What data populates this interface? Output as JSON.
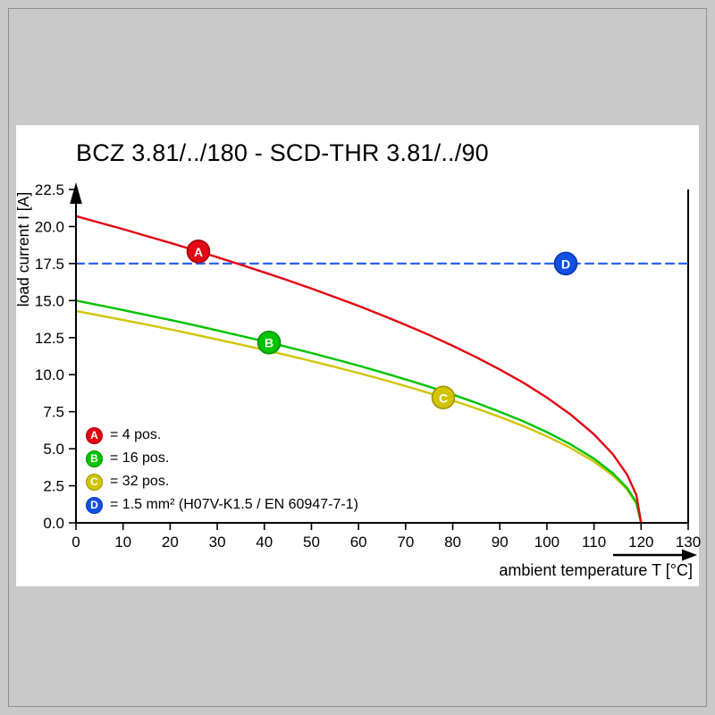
{
  "chart_data": {
    "type": "line",
    "title": "BCZ 3.81/../180 - SCD-THR 3.81/../90",
    "xlabel": "ambient temperature T [°C]",
    "ylabel": "load current I [A]",
    "xlim": [
      0,
      130
    ],
    "ylim": [
      0,
      22.5
    ],
    "xticks": [
      "0",
      "10",
      "20",
      "30",
      "40",
      "50",
      "60",
      "70",
      "80",
      "90",
      "100",
      "110",
      "120",
      "130"
    ],
    "yticks": [
      "0.0",
      "2.5",
      "5.0",
      "7.5",
      "10.0",
      "12.5",
      "15.0",
      "17.5",
      "20.0",
      "22.5"
    ],
    "grid": false,
    "legend_position": "inside-lower-left",
    "axis_color": "#000000",
    "series": [
      {
        "name": "A",
        "legend_label": "= 4 pos.",
        "color": "#e30613",
        "ring": "#a50010",
        "style": "solid",
        "marker_at": [
          26,
          18.32
        ],
        "points": [
          [
            0,
            20.7
          ],
          [
            5,
            20.26
          ],
          [
            10,
            19.82
          ],
          [
            15,
            19.36
          ],
          [
            20,
            18.9
          ],
          [
            25,
            18.42
          ],
          [
            30,
            17.93
          ],
          [
            35,
            17.42
          ],
          [
            40,
            16.9
          ],
          [
            45,
            16.37
          ],
          [
            50,
            15.81
          ],
          [
            55,
            15.23
          ],
          [
            60,
            14.64
          ],
          [
            65,
            14.01
          ],
          [
            70,
            13.36
          ],
          [
            75,
            12.68
          ],
          [
            80,
            11.95
          ],
          [
            85,
            11.18
          ],
          [
            90,
            10.35
          ],
          [
            95,
            9.46
          ],
          [
            100,
            8.45
          ],
          [
            105,
            7.32
          ],
          [
            110,
            5.98
          ],
          [
            114,
            4.63
          ],
          [
            117,
            3.27
          ],
          [
            119,
            1.89
          ],
          [
            120,
            0
          ]
        ]
      },
      {
        "name": "B",
        "legend_label": "= 16 pos.",
        "color": "#00c300",
        "ring": "#008f00",
        "style": "solid",
        "marker_at": [
          41,
          12.17
        ],
        "points": [
          [
            0,
            15
          ],
          [
            5,
            14.68
          ],
          [
            10,
            14.36
          ],
          [
            15,
            14.03
          ],
          [
            20,
            13.7
          ],
          [
            25,
            13.35
          ],
          [
            30,
            12.99
          ],
          [
            35,
            12.62
          ],
          [
            40,
            12.25
          ],
          [
            45,
            11.86
          ],
          [
            50,
            11.46
          ],
          [
            55,
            11.04
          ],
          [
            60,
            10.61
          ],
          [
            65,
            10.15
          ],
          [
            70,
            9.68
          ],
          [
            75,
            9.19
          ],
          [
            80,
            8.66
          ],
          [
            85,
            8.1
          ],
          [
            90,
            7.5
          ],
          [
            95,
            6.85
          ],
          [
            100,
            6.12
          ],
          [
            105,
            5.3
          ],
          [
            110,
            4.33
          ],
          [
            114,
            3.35
          ],
          [
            117,
            2.37
          ],
          [
            119,
            1.37
          ],
          [
            120,
            0
          ]
        ]
      },
      {
        "name": "C",
        "legend_label": "= 32 pos.",
        "color": "#d1c400",
        "ring": "#9e9400",
        "style": "solid",
        "marker_at": [
          78,
          8.46
        ],
        "points": [
          [
            0,
            14.3
          ],
          [
            5,
            14
          ],
          [
            10,
            13.69
          ],
          [
            15,
            13.38
          ],
          [
            20,
            13.06
          ],
          [
            25,
            12.72
          ],
          [
            30,
            12.38
          ],
          [
            35,
            12.03
          ],
          [
            40,
            11.67
          ],
          [
            45,
            11.3
          ],
          [
            50,
            10.92
          ],
          [
            55,
            10.52
          ],
          [
            60,
            10.11
          ],
          [
            65,
            9.68
          ],
          [
            70,
            9.23
          ],
          [
            75,
            8.76
          ],
          [
            80,
            8.26
          ],
          [
            85,
            7.72
          ],
          [
            90,
            7.15
          ],
          [
            95,
            6.53
          ],
          [
            100,
            5.84
          ],
          [
            105,
            5.06
          ],
          [
            110,
            4.13
          ],
          [
            114,
            3.2
          ],
          [
            117,
            2.26
          ],
          [
            119,
            1.31
          ],
          [
            120,
            0
          ]
        ]
      },
      {
        "name": "D",
        "legend_label": "= 1.5 mm² (H07V-K1.5 / EN 60947-7-1)",
        "color": "#2e64f5",
        "marker_color": "#1150e0",
        "ring": "#0a36b5",
        "style": "dashed",
        "marker_at": [
          104,
          17.5
        ],
        "points": [
          [
            0,
            17.5
          ],
          [
            130,
            17.5
          ]
        ]
      }
    ]
  }
}
